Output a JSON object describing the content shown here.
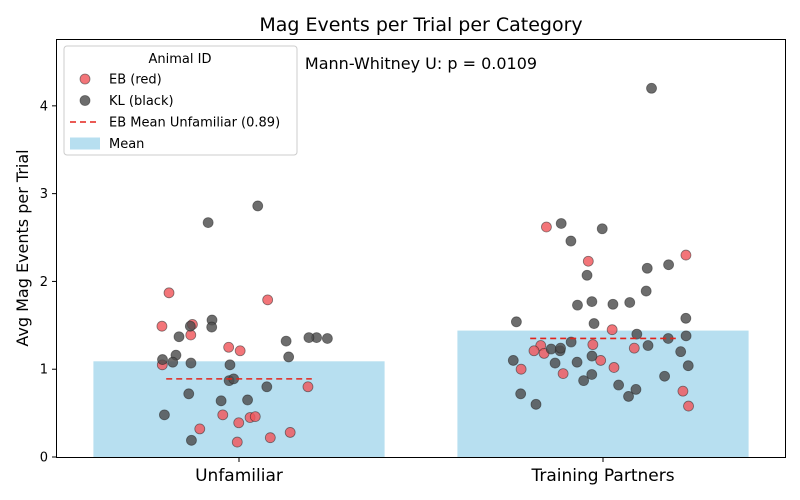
{
  "chart_data": {
    "type": "bar",
    "title": "Mag Events per Trial per Category",
    "ylabel": "Avg Mag Events per Trial",
    "xlabel": "",
    "categories": [
      "Unfamiliar",
      "Training Partners"
    ],
    "ylim": [
      0,
      4.75
    ],
    "yticks": [
      0,
      1,
      2,
      3,
      4
    ],
    "annotation": "Mann-Whitney U: p = 0.0109",
    "grid": false,
    "legend": {
      "title": "Animal ID",
      "placement": "top-left",
      "entries": [
        {
          "label": "EB (red)",
          "kind": "marker",
          "color": "#f0575c"
        },
        {
          "label": "KL (black)",
          "kind": "marker",
          "color": "#4d4d4d"
        },
        {
          "label": "EB Mean Unfamiliar (0.89)",
          "kind": "dashed-line",
          "color": "#e3241b"
        },
        {
          "label": "Mean",
          "kind": "patch",
          "color": "#b7dff0"
        }
      ]
    },
    "bar_color": "#b7dff0",
    "mean_values": [
      1.09,
      1.44
    ],
    "eb_mean_lines": [
      0.89,
      1.35
    ],
    "series": [
      {
        "name": "EB (red)",
        "color": "#f0575c",
        "points": [
          {
            "category": "Unfamiliar",
            "values": [
              0.17,
              0.45,
              1.87,
              1.51,
              1.25,
              1.21,
              1.05,
              0.8,
              0.46,
              0.48,
              0.32,
              0.28,
              1.79,
              1.49,
              0.39,
              1.39,
              0.22
            ]
          },
          {
            "category": "Training Partners",
            "values": [
              1.27,
              1.02,
              1.1,
              1.18,
              1.0,
              0.75,
              0.58,
              1.21,
              1.28,
              2.3,
              2.62,
              2.23,
              1.45,
              1.24,
              0.95
            ]
          }
        ]
      },
      {
        "name": "KL (black)",
        "color": "#4d4d4d",
        "points": [
          {
            "category": "Unfamiliar",
            "values": [
              1.37,
              1.35,
              0.87,
              1.49,
              0.65,
              2.67,
              1.16,
              1.14,
              1.56,
              1.48,
              1.11,
              1.36,
              0.19,
              1.36,
              0.89,
              1.07,
              2.86,
              0.64,
              1.32,
              0.8,
              1.08,
              0.72,
              1.05,
              0.48
            ]
          },
          {
            "category": "Training Partners",
            "values": [
              0.72,
              2.07,
              0.77,
              1.76,
              1.58,
              1.31,
              0.94,
              2.6,
              1.77,
              0.92,
              1.52,
              1.15,
              1.21,
              1.07,
              2.15,
              0.6,
              2.66,
              4.2,
              1.35,
              1.04,
              1.2,
              2.19,
              1.27,
              0.69,
              1.74,
              1.54,
              2.46,
              1.08,
              1.23,
              0.87,
              1.4,
              1.89,
              1.24,
              1.38,
              1.1,
              1.73,
              0.82
            ]
          }
        ]
      }
    ]
  }
}
